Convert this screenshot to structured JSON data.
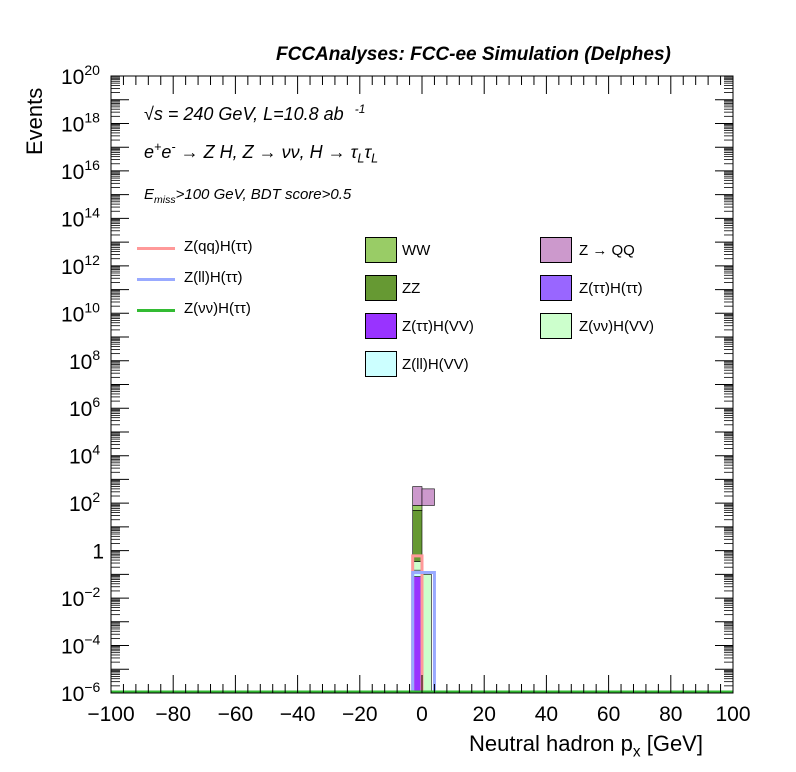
{
  "header": {
    "title": "FCCAnalyses: FCC-ee Simulation (Delphes)"
  },
  "annotations": {
    "energy_lumi": "√s = 240 GeV, L=10.8 ab",
    "energy_lumi_sup": "-1",
    "process_html": "e<sup>+</sup>e<sup>-</sup> → Z H, Z → νν, H → τ<sub>L</sub>τ<sub>L</sub>",
    "cuts_html": "E<sub>miss</sub>>100 GeV, BDT score>0.5"
  },
  "colors": {
    "WW": "#99cc66",
    "ZZ": "#669933",
    "ZQQ": "#cc99cc",
    "Ztautau_Htautau": "#9966ff",
    "Ztautau_HVV": "#9933ff",
    "Znunu_HVV": "#ccffcc",
    "Zll_HVV": "#ccffff",
    "Zqq_Htautau": "#ff9999",
    "Zll_Htautau": "#99aaff",
    "Znunu_Htautau": "#33bb33"
  },
  "chart_data": {
    "type": "bar",
    "title": "FCCAnalyses: FCC-ee Simulation (Delphes)",
    "xlabel": "Neutral hadron p",
    "xlabel_sub": "x",
    "xlabel_unit": "[GeV]",
    "ylabel": "Events",
    "xlim": [
      -100,
      100
    ],
    "ylim": [
      1e-06,
      1e+20
    ],
    "yscale": "log",
    "x_ticks": [
      "−100",
      "−80",
      "−60",
      "−40",
      "−20",
      "0",
      "20",
      "40",
      "60",
      "80",
      "100"
    ],
    "y_ticks": [
      {
        "base": "10",
        "exp": "−6",
        "value": 1e-06
      },
      {
        "base": "10",
        "exp": "−4",
        "value": 0.0001
      },
      {
        "base": "10",
        "exp": "−2",
        "value": 0.01
      },
      {
        "base": "1",
        "exp": "",
        "value": 1
      },
      {
        "base": "10",
        "exp": "2",
        "value": 100.0
      },
      {
        "base": "10",
        "exp": "4",
        "value": 10000.0
      },
      {
        "base": "10",
        "exp": "6",
        "value": 1000000.0
      },
      {
        "base": "10",
        "exp": "8",
        "value": 100000000.0
      },
      {
        "base": "10",
        "exp": "10",
        "value": 10000000000.0
      },
      {
        "base": "10",
        "exp": "12",
        "value": 1000000000000.0
      },
      {
        "base": "10",
        "exp": "14",
        "value": 100000000000000.0
      },
      {
        "base": "10",
        "exp": "16",
        "value": 1e+16
      },
      {
        "base": "10",
        "exp": "18",
        "value": 1e+18
      },
      {
        "base": "10",
        "exp": "20",
        "value": 1e+20
      }
    ],
    "grid": false,
    "legend_position": "top",
    "stacked_series": [
      {
        "name": "Z(ττ)H(VV)",
        "bins": [
          {
            "x0": -3,
            "x1": 0,
            "y0": 1e-06,
            "y1": 0.08
          }
        ],
        "color_key": "Ztautau_HVV"
      },
      {
        "name": "Z(ll)H(VV)",
        "bins": [
          {
            "x0": -3,
            "x1": 0,
            "y0": 0.08,
            "y1": 0.15
          }
        ],
        "color_key": "Zll_HVV"
      },
      {
        "name": "Z(νν)H(VV)",
        "bins": [
          {
            "x0": -3,
            "x1": 0,
            "y0": 0.15,
            "y1": 0.35
          },
          {
            "x0": 0,
            "x1": 3,
            "y0": 1e-06,
            "y1": 0.1
          }
        ],
        "color_key": "Znunu_HVV"
      },
      {
        "name": "ZZ",
        "bins": [
          {
            "x0": -3,
            "x1": 0,
            "y0": 0.35,
            "y1": 50
          }
        ],
        "color_key": "ZZ"
      },
      {
        "name": "WW",
        "bins": [
          {
            "x0": -3,
            "x1": 0,
            "y0": 50,
            "y1": 80
          }
        ],
        "color_key": "WW"
      },
      {
        "name": "Z → QQ",
        "bins": [
          {
            "x0": -3,
            "x1": 0,
            "y0": 80,
            "y1": 500
          },
          {
            "x0": 0,
            "x1": 4,
            "y0": 80,
            "y1": 400
          }
        ],
        "color_key": "ZQQ"
      }
    ],
    "overlay_series": [
      {
        "name": "Z(qq)H(ττ)",
        "bins": [
          {
            "x0": -3,
            "x1": 0,
            "y": 0.6
          }
        ],
        "color_key": "Zqq_Htautau"
      },
      {
        "name": "Z(ll)H(ττ)",
        "bins": [
          {
            "x0": -3,
            "x1": 4,
            "y": 0.12
          }
        ],
        "color_key": "Zll_Htautau"
      },
      {
        "name": "Z(νν)H(ττ)",
        "bins": [
          {
            "x0": -100,
            "x1": 100,
            "y": 1e-06
          }
        ],
        "color_key": "Znunu_Htautau"
      }
    ]
  },
  "legend": {
    "lines": [
      {
        "label": "Z(qq)H(ττ)",
        "color_key": "Zqq_Htautau"
      },
      {
        "label": "Z(ll)H(ττ)",
        "color_key": "Zll_Htautau"
      },
      {
        "label": "Z(νν)H(ττ)",
        "color_key": "Znunu_Htautau"
      }
    ],
    "boxes_col1": [
      {
        "label": "WW",
        "color_key": "WW"
      },
      {
        "label": "ZZ",
        "color_key": "ZZ"
      },
      {
        "label": "Z(ττ)H(VV)",
        "color_key": "Ztautau_HVV"
      },
      {
        "label": "Z(ll)H(VV)",
        "color_key": "Zll_HVV"
      }
    ],
    "boxes_col2": [
      {
        "label": "Z → QQ",
        "color_key": "ZQQ"
      },
      {
        "label": "Z(ττ)H(ττ)",
        "color_key": "Ztautau_Htautau"
      },
      {
        "label": "Z(νν)H(VV)",
        "color_key": "Znunu_HVV"
      }
    ]
  }
}
